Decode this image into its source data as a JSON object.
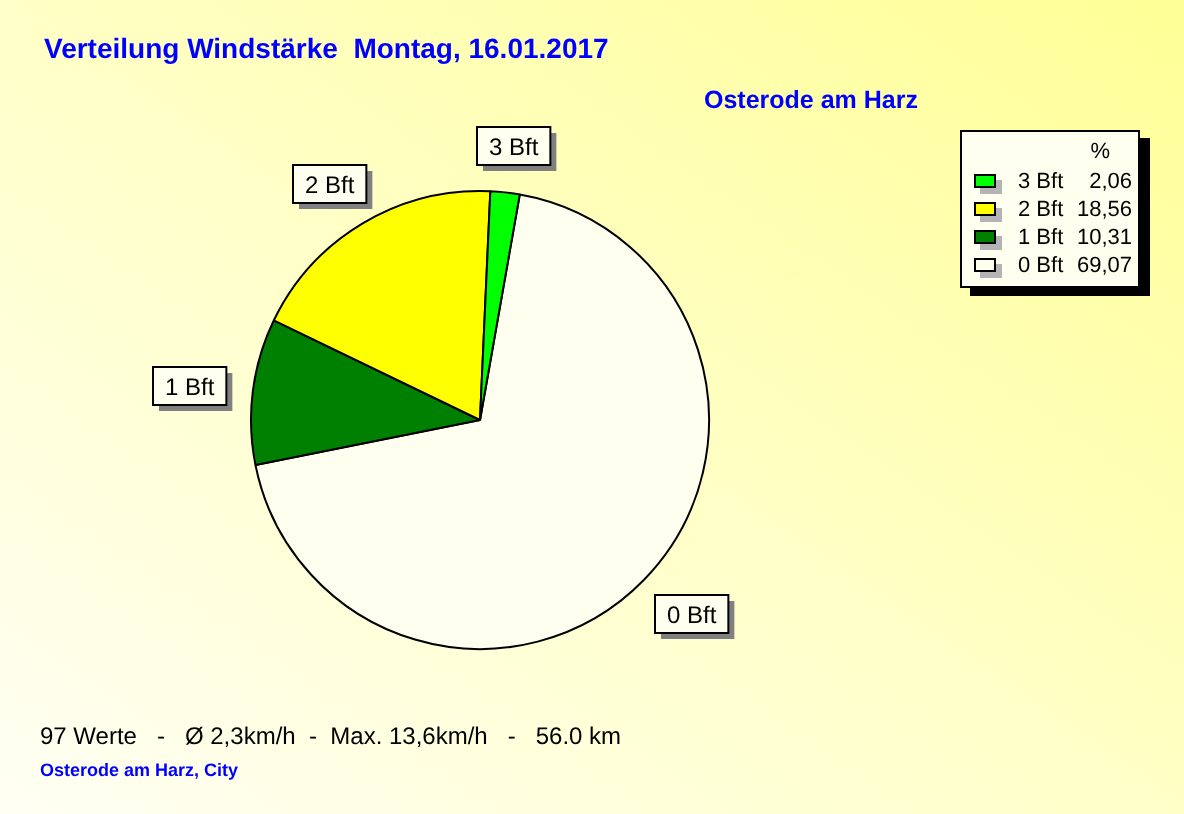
{
  "chart_data": {
    "type": "pie",
    "title": "Verteilung Windstärke  Montag, 16.01.2017",
    "subtitle": "Osterode am Harz",
    "categories": [
      "3 Bft",
      "2 Bft",
      "1 Bft",
      "0 Bft"
    ],
    "values": [
      2.06,
      18.56,
      10.31,
      69.07
    ],
    "colors": [
      "#00ff00",
      "#ffff00",
      "#008000",
      "#fffff0"
    ],
    "value_labels": [
      "2,06",
      "18,56",
      "10,31",
      "69,07"
    ],
    "legend": "top right",
    "legend_title": "%",
    "annotations": [
      "97 Werte   -   Ø 2,3km/h  -  Max. 13,6km/h   -   56.0 km",
      "Osterode am Harz, City"
    ]
  }
}
